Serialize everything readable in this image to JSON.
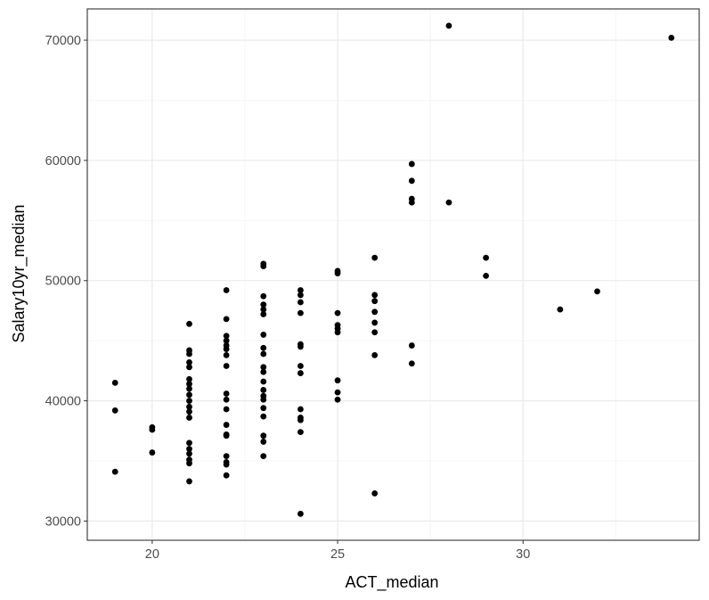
{
  "chart_data": {
    "type": "scatter",
    "title": "",
    "xlabel": "ACT_median",
    "ylabel": "Salary10yr_median",
    "xlim": [
      18.25,
      34.75
    ],
    "ylim": [
      28400,
      72600
    ],
    "x_ticks": [
      20,
      25,
      30
    ],
    "x_tick_labels": [
      "20",
      "25",
      "30"
    ],
    "x_minor_ticks": [
      22.5,
      27.5,
      32.5
    ],
    "y_ticks": [
      30000,
      40000,
      50000,
      60000,
      70000
    ],
    "y_tick_labels": [
      "30000",
      "40000",
      "50000",
      "60000",
      "70000"
    ],
    "y_minor_ticks": [
      35000,
      45000,
      55000,
      65000
    ],
    "grid": true,
    "legend": "none",
    "colors": {
      "point": "#000000",
      "grid_major": "#ebebeb",
      "grid_minor": "#f5f5f5",
      "panel_border": "#333333",
      "tick_label": "#4d4d4d"
    },
    "points": [
      {
        "x": 19,
        "y": 41500
      },
      {
        "x": 19,
        "y": 39200
      },
      {
        "x": 19,
        "y": 34100
      },
      {
        "x": 20,
        "y": 37800
      },
      {
        "x": 20,
        "y": 37600
      },
      {
        "x": 20,
        "y": 35700
      },
      {
        "x": 21,
        "y": 46400
      },
      {
        "x": 21,
        "y": 44200
      },
      {
        "x": 21,
        "y": 43900
      },
      {
        "x": 21,
        "y": 43200
      },
      {
        "x": 21,
        "y": 42800
      },
      {
        "x": 21,
        "y": 41800
      },
      {
        "x": 21,
        "y": 41400
      },
      {
        "x": 21,
        "y": 41000
      },
      {
        "x": 21,
        "y": 40500
      },
      {
        "x": 21,
        "y": 40000
      },
      {
        "x": 21,
        "y": 39500
      },
      {
        "x": 21,
        "y": 39100
      },
      {
        "x": 21,
        "y": 38600
      },
      {
        "x": 21,
        "y": 36500
      },
      {
        "x": 21,
        "y": 36000
      },
      {
        "x": 21,
        "y": 35600
      },
      {
        "x": 21,
        "y": 35100
      },
      {
        "x": 21,
        "y": 34800
      },
      {
        "x": 21,
        "y": 33300
      },
      {
        "x": 22,
        "y": 49200
      },
      {
        "x": 22,
        "y": 46800
      },
      {
        "x": 22,
        "y": 45400
      },
      {
        "x": 22,
        "y": 45000
      },
      {
        "x": 22,
        "y": 44600
      },
      {
        "x": 22,
        "y": 44300
      },
      {
        "x": 22,
        "y": 43800
      },
      {
        "x": 22,
        "y": 42900
      },
      {
        "x": 22,
        "y": 40600
      },
      {
        "x": 22,
        "y": 40100
      },
      {
        "x": 22,
        "y": 39300
      },
      {
        "x": 22,
        "y": 38000
      },
      {
        "x": 22,
        "y": 37200
      },
      {
        "x": 22,
        "y": 37100
      },
      {
        "x": 22,
        "y": 35400
      },
      {
        "x": 22,
        "y": 34900
      },
      {
        "x": 22,
        "y": 34700
      },
      {
        "x": 22,
        "y": 33800
      },
      {
        "x": 23,
        "y": 51400
      },
      {
        "x": 23,
        "y": 51200
      },
      {
        "x": 23,
        "y": 48700
      },
      {
        "x": 23,
        "y": 48000
      },
      {
        "x": 23,
        "y": 47600
      },
      {
        "x": 23,
        "y": 47200
      },
      {
        "x": 23,
        "y": 45500
      },
      {
        "x": 23,
        "y": 44400
      },
      {
        "x": 23,
        "y": 43900
      },
      {
        "x": 23,
        "y": 42800
      },
      {
        "x": 23,
        "y": 42400
      },
      {
        "x": 23,
        "y": 41600
      },
      {
        "x": 23,
        "y": 40900
      },
      {
        "x": 23,
        "y": 40400
      },
      {
        "x": 23,
        "y": 40100
      },
      {
        "x": 23,
        "y": 39400
      },
      {
        "x": 23,
        "y": 38700
      },
      {
        "x": 23,
        "y": 37100
      },
      {
        "x": 23,
        "y": 36600
      },
      {
        "x": 23,
        "y": 35400
      },
      {
        "x": 24,
        "y": 49200
      },
      {
        "x": 24,
        "y": 48800
      },
      {
        "x": 24,
        "y": 48200
      },
      {
        "x": 24,
        "y": 47300
      },
      {
        "x": 24,
        "y": 44700
      },
      {
        "x": 24,
        "y": 44500
      },
      {
        "x": 24,
        "y": 42900
      },
      {
        "x": 24,
        "y": 42300
      },
      {
        "x": 24,
        "y": 39300
      },
      {
        "x": 24,
        "y": 38600
      },
      {
        "x": 24,
        "y": 38400
      },
      {
        "x": 24,
        "y": 37400
      },
      {
        "x": 24,
        "y": 30600
      },
      {
        "x": 25,
        "y": 50800
      },
      {
        "x": 25,
        "y": 50600
      },
      {
        "x": 25,
        "y": 47300
      },
      {
        "x": 25,
        "y": 46300
      },
      {
        "x": 25,
        "y": 46000
      },
      {
        "x": 25,
        "y": 45700
      },
      {
        "x": 25,
        "y": 41700
      },
      {
        "x": 25,
        "y": 40700
      },
      {
        "x": 25,
        "y": 40100
      },
      {
        "x": 26,
        "y": 51900
      },
      {
        "x": 26,
        "y": 48800
      },
      {
        "x": 26,
        "y": 48300
      },
      {
        "x": 26,
        "y": 47400
      },
      {
        "x": 26,
        "y": 46500
      },
      {
        "x": 26,
        "y": 45700
      },
      {
        "x": 26,
        "y": 43800
      },
      {
        "x": 26,
        "y": 32300
      },
      {
        "x": 27,
        "y": 59700
      },
      {
        "x": 27,
        "y": 58300
      },
      {
        "x": 27,
        "y": 56800
      },
      {
        "x": 27,
        "y": 56500
      },
      {
        "x": 27,
        "y": 44600
      },
      {
        "x": 27,
        "y": 43100
      },
      {
        "x": 28,
        "y": 71200
      },
      {
        "x": 28,
        "y": 56500
      },
      {
        "x": 29,
        "y": 51900
      },
      {
        "x": 29,
        "y": 50400
      },
      {
        "x": 31,
        "y": 47600
      },
      {
        "x": 32,
        "y": 49100
      },
      {
        "x": 34,
        "y": 70200
      }
    ]
  }
}
